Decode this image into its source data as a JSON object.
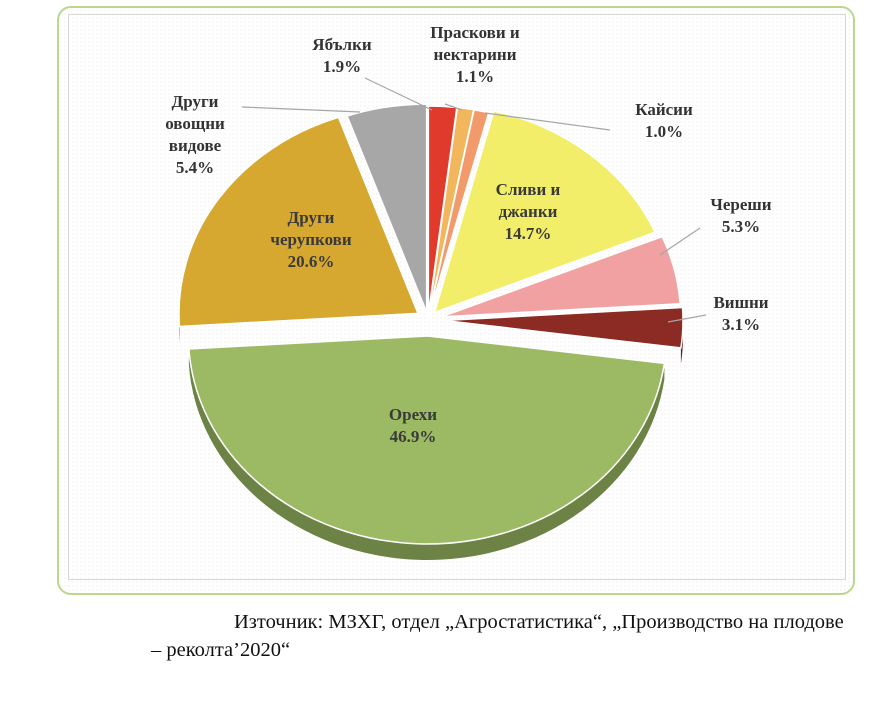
{
  "chart_data": {
    "type": "pie",
    "slices": [
      {
        "label": [
          "Ябълки"
        ],
        "value": 1.9,
        "pct": "1.9%",
        "color": "#e03a2c"
      },
      {
        "label": [
          "Праскови и",
          "нектарини"
        ],
        "value": 1.1,
        "pct": "1.1%",
        "color": "#f2b65c"
      },
      {
        "label": [
          "Кайсии"
        ],
        "value": 1.0,
        "pct": "1.0%",
        "color": "#f39a6b"
      },
      {
        "label": [
          "Сливи и",
          "джанки"
        ],
        "value": 14.7,
        "pct": "14.7%",
        "color": "#f2ee6a"
      },
      {
        "label": [
          "Череши"
        ],
        "value": 5.3,
        "pct": "5.3%",
        "color": "#f1a1a1"
      },
      {
        "label": [
          "Вишни"
        ],
        "value": 3.1,
        "pct": "3.1%",
        "color": "#8c2a24"
      },
      {
        "label": [
          "Орехи"
        ],
        "value": 46.9,
        "pct": "46.9%",
        "color": "#9cba63"
      },
      {
        "label": [
          "Други",
          "черупкови"
        ],
        "value": 20.6,
        "pct": "20.6%",
        "color": "#d6a830"
      },
      {
        "label": [
          "Други",
          "овощни",
          "видове"
        ],
        "value": 5.4,
        "pct": "5.4%",
        "color": "#a7a7a7"
      }
    ]
  },
  "source": {
    "line1": "Източник: МЗХГ, отдел „Агростатистика“, „Производство на плодове",
    "line2": "– реколта’2020“"
  }
}
